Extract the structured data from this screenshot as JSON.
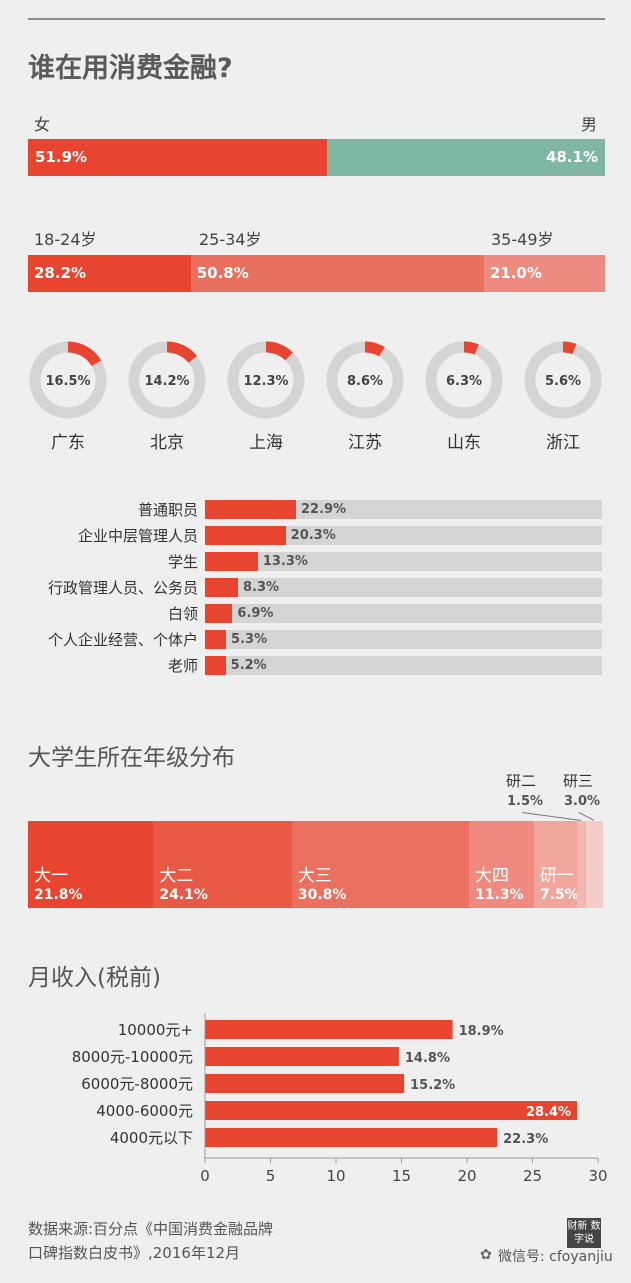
{
  "title": "谁在用消费金融?",
  "gender": {
    "female_label": "女",
    "male_label": "男",
    "female_value": "51.9%",
    "male_value": "48.1%"
  },
  "age": {
    "labels": [
      "18-24岁",
      "25-34岁",
      "35-49岁"
    ],
    "values": [
      "28.2%",
      "50.8%",
      "21.0%"
    ]
  },
  "regions": [
    {
      "name": "广东",
      "value": "16.5%"
    },
    {
      "name": "北京",
      "value": "14.2%"
    },
    {
      "name": "上海",
      "value": "12.3%"
    },
    {
      "name": "江苏",
      "value": "8.6%"
    },
    {
      "name": "山东",
      "value": "6.3%"
    },
    {
      "name": "浙江",
      "value": "5.6%"
    }
  ],
  "occupations": [
    {
      "label": "普通职员",
      "value": "22.9%"
    },
    {
      "label": "企业中层管理人员",
      "value": "20.3%"
    },
    {
      "label": "学生",
      "value": "13.3%"
    },
    {
      "label": "行政管理人员、公务员",
      "value": "8.3%"
    },
    {
      "label": "白领",
      "value": "6.9%"
    },
    {
      "label": "个人企业经营、个体户",
      "value": "5.3%"
    },
    {
      "label": "老师",
      "value": "5.2%"
    }
  ],
  "grade_title": "大学生所在年级分布",
  "grades": [
    {
      "label": "大一",
      "value": "21.8%"
    },
    {
      "label": "大二",
      "value": "24.1%"
    },
    {
      "label": "大三",
      "value": "30.8%"
    },
    {
      "label": "大四",
      "value": "11.3%"
    },
    {
      "label": "研一",
      "value": "7.5%"
    },
    {
      "label": "研二",
      "value": "1.5%"
    },
    {
      "label": "研三",
      "value": "3.0%"
    }
  ],
  "income_title": "月收入(税前)",
  "footer": {
    "source_line1": "数据来源:百分点《中国消费金融品牌",
    "source_line2": "口碑指数白皮书》,2016年12月",
    "logo_text": "财新 数字说",
    "wechat": "微信号: cfoyanjiu"
  },
  "colors": {
    "red": "#e84530",
    "teal": "#7fb7a4",
    "ring": "#d4d4d4"
  },
  "chart_data": [
    {
      "type": "bar",
      "categories": [
        "女",
        "男"
      ],
      "values": [
        51.9,
        48.1
      ]
    },
    {
      "type": "bar",
      "categories": [
        "18-24岁",
        "25-34岁",
        "35-49岁"
      ],
      "values": [
        28.2,
        50.8,
        21.0
      ]
    },
    {
      "type": "pie",
      "categories": [
        "广东",
        "北京",
        "上海",
        "江苏",
        "山东",
        "浙江"
      ],
      "values": [
        16.5,
        14.2,
        12.3,
        8.6,
        6.3,
        5.6
      ]
    },
    {
      "type": "bar",
      "categories": [
        "普通职员",
        "企业中层管理人员",
        "学生",
        "行政管理人员、公务员",
        "白领",
        "个人企业经营、个体户",
        "老师"
      ],
      "values": [
        22.9,
        20.3,
        13.3,
        8.3,
        6.9,
        5.3,
        5.2
      ]
    },
    {
      "type": "bar",
      "title": "大学生所在年级分布",
      "categories": [
        "大一",
        "大二",
        "大三",
        "大四",
        "研一",
        "研二",
        "研三"
      ],
      "values": [
        21.8,
        24.1,
        30.8,
        11.3,
        7.5,
        1.5,
        3.0
      ]
    },
    {
      "type": "bar",
      "title": "月收入(税前)",
      "categories": [
        "10000元+",
        "8000元-10000元",
        "6000元-8000元",
        "4000-6000元",
        "4000元以下"
      ],
      "values": [
        18.9,
        14.8,
        15.2,
        28.4,
        22.3
      ],
      "value_labels": [
        "18.9%",
        "14.8%",
        "15.2%",
        "28.4%",
        "22.3%"
      ],
      "xlim": [
        0,
        30
      ],
      "xticks": [
        0,
        5,
        10,
        15,
        20,
        25,
        30
      ]
    }
  ]
}
